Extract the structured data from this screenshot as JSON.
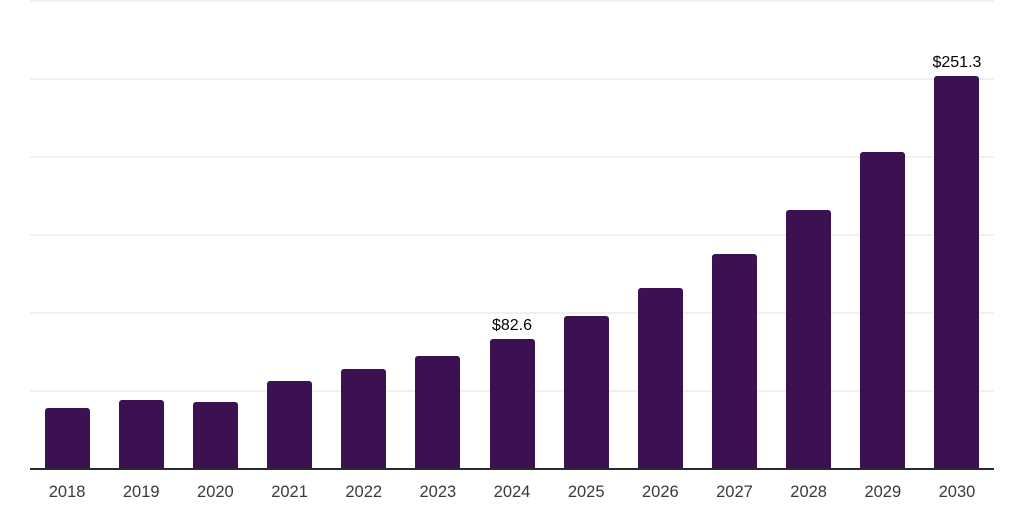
{
  "chart_data": {
    "type": "bar",
    "categories": [
      "2018",
      "2019",
      "2020",
      "2021",
      "2022",
      "2023",
      "2024",
      "2025",
      "2026",
      "2027",
      "2028",
      "2029",
      "2030"
    ],
    "values": [
      38.7,
      43.8,
      42.3,
      55.7,
      63.5,
      72.0,
      82.6,
      97.7,
      115.1,
      137.4,
      165.6,
      202.8,
      251.3
    ],
    "bar_labels": [
      "",
      "",
      "",
      "",
      "",
      "",
      "$82.6",
      "",
      "",
      "",
      "",
      "",
      "$251.3"
    ],
    "ylim": [
      0,
      300
    ],
    "gridline_values": [
      300,
      250,
      200,
      150,
      100,
      50,
      0
    ],
    "grid": "horizontal",
    "legend_position": "none",
    "xlabel": "",
    "ylabel": "",
    "colors": {
      "bar": "#3B1152",
      "gridline": "#F0F0F0",
      "axis_line": "#2B2B2B",
      "bar_label_text": "#000000",
      "tick_label_text": "#3A3A3A",
      "background": "#FFFFFF"
    }
  }
}
